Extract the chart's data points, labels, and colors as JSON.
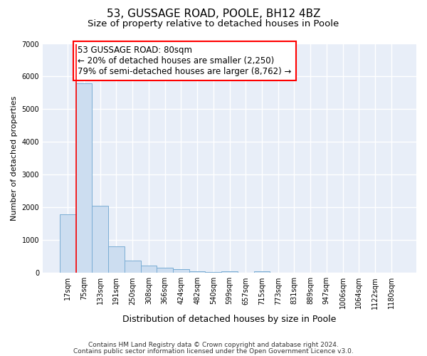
{
  "title1": "53, GUSSAGE ROAD, POOLE, BH12 4BZ",
  "title2": "Size of property relative to detached houses in Poole",
  "xlabel": "Distribution of detached houses by size in Poole",
  "ylabel": "Number of detached properties",
  "bar_color": "#ccddf0",
  "bar_edge_color": "#7aadd4",
  "categories": [
    "17sqm",
    "75sqm",
    "133sqm",
    "191sqm",
    "250sqm",
    "308sqm",
    "366sqm",
    "424sqm",
    "482sqm",
    "540sqm",
    "599sqm",
    "657sqm",
    "715sqm",
    "773sqm",
    "831sqm",
    "889sqm",
    "947sqm",
    "1006sqm",
    "1064sqm",
    "1122sqm",
    "1180sqm"
  ],
  "values": [
    1800,
    5800,
    2050,
    820,
    380,
    230,
    160,
    110,
    50,
    30,
    50,
    0,
    50,
    0,
    0,
    0,
    0,
    0,
    0,
    0,
    0
  ],
  "ylim": [
    0,
    7000
  ],
  "yticks": [
    0,
    1000,
    2000,
    3000,
    4000,
    5000,
    6000,
    7000
  ],
  "red_line_x": 0.5,
  "annotation_text": "53 GUSSAGE ROAD: 80sqm\n← 20% of detached houses are smaller (2,250)\n79% of semi-detached houses are larger (8,762) →",
  "annotation_box_color": "white",
  "annotation_box_edge_color": "red",
  "footnote1": "Contains HM Land Registry data © Crown copyright and database right 2024.",
  "footnote2": "Contains public sector information licensed under the Open Government Licence v3.0.",
  "background_color": "#e8eef8",
  "grid_color": "white",
  "title1_fontsize": 11,
  "title2_fontsize": 9.5,
  "annot_fontsize": 8.5,
  "ylabel_fontsize": 8,
  "xlabel_fontsize": 9,
  "tick_fontsize": 7
}
